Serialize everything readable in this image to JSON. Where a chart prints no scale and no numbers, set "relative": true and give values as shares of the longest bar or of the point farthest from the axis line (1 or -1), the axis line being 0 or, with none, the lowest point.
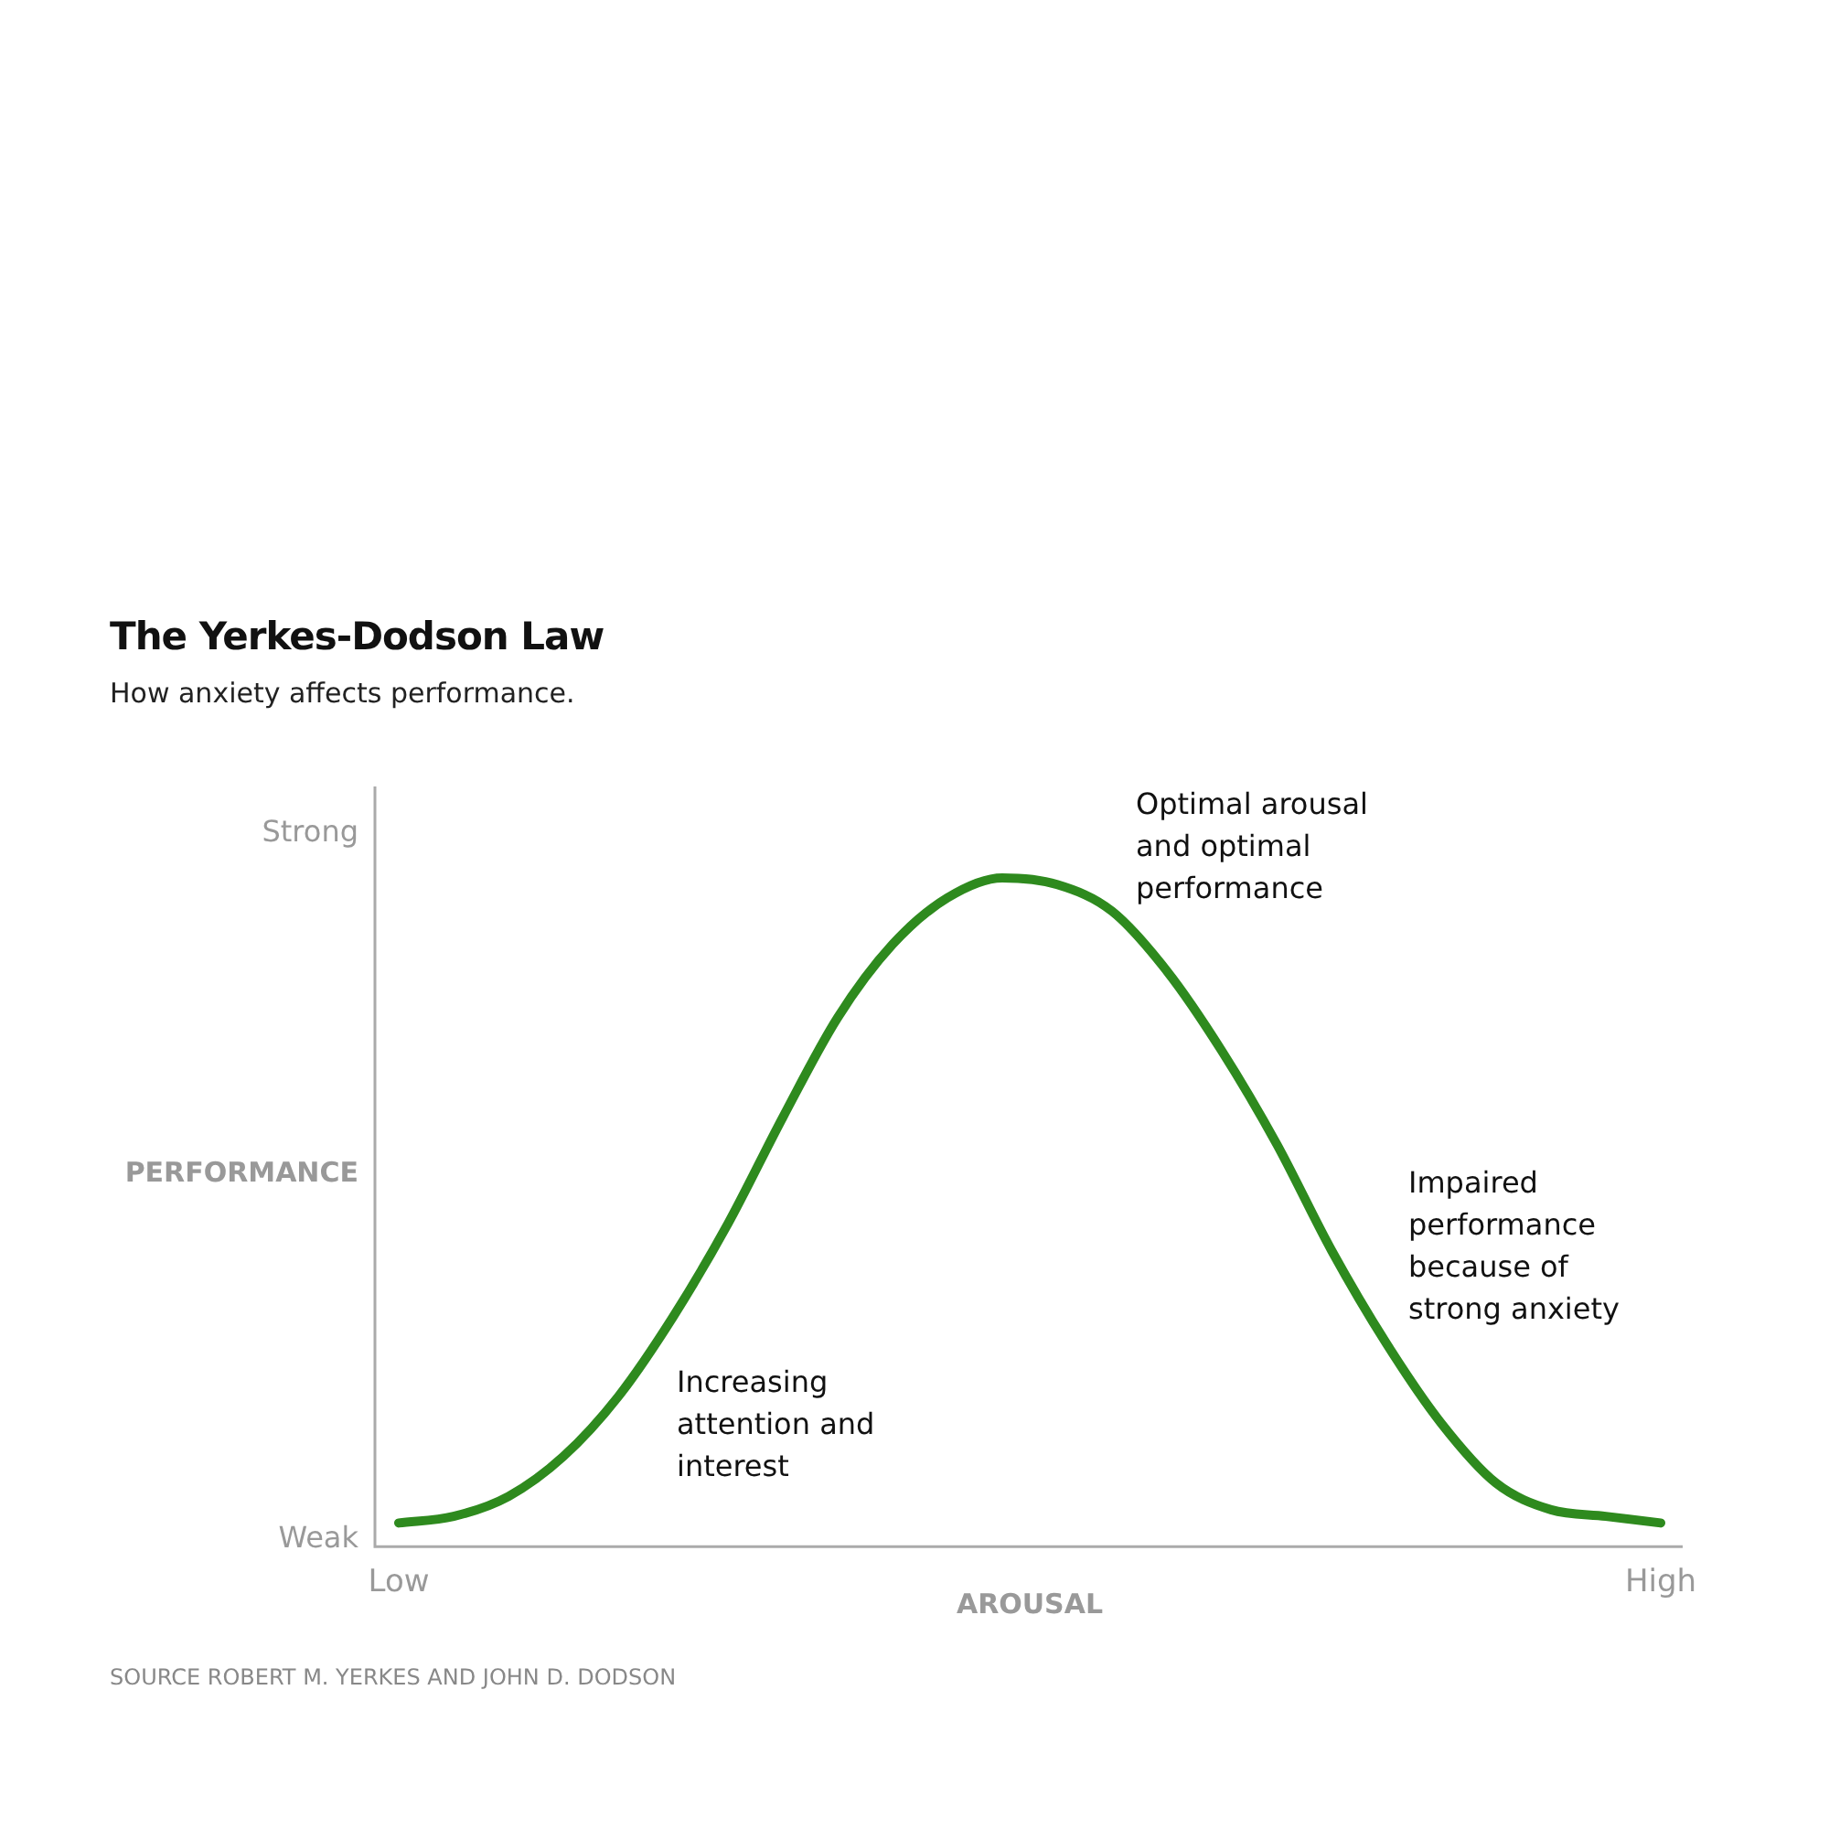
{
  "chart_data": {
    "type": "line",
    "title": "The Yerkes-Dodson Law",
    "subtitle": "How anxiety affects performance.",
    "xlabel": "AROUSAL",
    "ylabel": "PERFORMANCE",
    "relative": true,
    "categories": [
      "Low",
      null,
      null,
      null,
      null,
      null,
      null,
      null,
      null,
      null,
      null,
      null,
      null,
      null,
      null,
      null,
      null,
      null,
      null,
      null,
      null,
      null,
      null,
      "High"
    ],
    "series": [
      {
        "color": "#2e8a1e",
        "values": [
          0.03,
          0.04,
          0.07,
          0.13,
          0.22,
          0.34,
          0.48,
          0.64,
          0.79,
          0.9,
          0.97,
          1.0,
          0.99,
          0.95,
          0.86,
          0.74,
          0.6,
          0.44,
          0.3,
          0.18,
          0.09,
          0.05,
          0.04,
          0.03
        ]
      }
    ],
    "annotations": [
      "Strong",
      "Weak",
      "Increasing attention and interest",
      "Optimal arousal and optimal performance",
      "Impaired performance because of strong anxiety",
      "SOURCE ROBERT M. YERKES AND JOHN D. DODSON"
    ],
    "marker": "none",
    "grid": false,
    "legend": false
  }
}
